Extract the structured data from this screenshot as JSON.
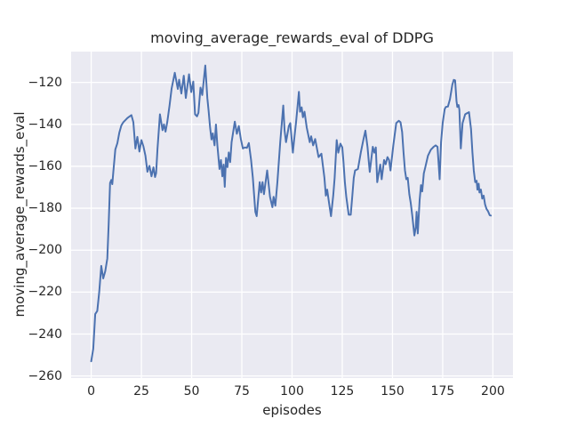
{
  "title": "moving_average_rewards_eval of DDPG",
  "colors": {
    "line": "#4c72b0",
    "axes_background": "#eaeaf2",
    "grid": "#ffffff",
    "text": "#262626",
    "figure_background": "#ffffff"
  },
  "chart_data": {
    "type": "line",
    "title": "moving_average_rewards_eval of DDPG",
    "xlabel": "episodes",
    "ylabel": "moving_average_rewards_eval",
    "x_ticks": [
      0,
      25,
      50,
      75,
      100,
      125,
      150,
      175,
      200
    ],
    "y_ticks": [
      -120,
      -140,
      -160,
      -180,
      -200,
      -220,
      -240,
      -260
    ],
    "xlim": [
      -10,
      210
    ],
    "ylim": [
      -261,
      -105.3
    ],
    "grid": true,
    "legend": "none",
    "series": [
      {
        "name": "moving_average_rewards_eval",
        "color": "#4c72b0",
        "points": [
          [
            0,
            -253
          ],
          [
            1,
            -247
          ],
          [
            2,
            -230.5
          ],
          [
            3,
            -229
          ],
          [
            4,
            -220
          ],
          [
            5,
            -207.5
          ],
          [
            6,
            -213.5
          ],
          [
            7,
            -210
          ],
          [
            8,
            -204
          ],
          [
            8.7,
            -188
          ],
          [
            9.4,
            -168
          ],
          [
            10,
            -166.5
          ],
          [
            10.5,
            -168.5
          ],
          [
            11,
            -163
          ],
          [
            12,
            -152
          ],
          [
            13,
            -149
          ],
          [
            14,
            -144
          ],
          [
            15,
            -140.5
          ],
          [
            16,
            -139
          ],
          [
            17,
            -138
          ],
          [
            18,
            -137
          ],
          [
            19,
            -136.3
          ],
          [
            20,
            -135.6
          ],
          [
            21,
            -139
          ],
          [
            22,
            -151.5
          ],
          [
            23,
            -146
          ],
          [
            24,
            -153
          ],
          [
            25,
            -147.5
          ],
          [
            26,
            -150.5
          ],
          [
            27,
            -155
          ],
          [
            28,
            -162.6
          ],
          [
            29,
            -159.8
          ],
          [
            30,
            -164.8
          ],
          [
            31,
            -160.5
          ],
          [
            31.8,
            -165.1
          ],
          [
            32.3,
            -163.3
          ],
          [
            33,
            -152
          ],
          [
            34.2,
            -135.2
          ],
          [
            35.5,
            -142.8
          ],
          [
            36.2,
            -140
          ],
          [
            37,
            -143.5
          ],
          [
            37.9,
            -138.7
          ],
          [
            39,
            -131
          ],
          [
            40,
            -123
          ],
          [
            41.6,
            -115.4
          ],
          [
            43.1,
            -123.1
          ],
          [
            43.8,
            -118.7
          ],
          [
            44.9,
            -125.3
          ],
          [
            46.1,
            -116.8
          ],
          [
            47.1,
            -127.4
          ],
          [
            48.7,
            -116.1
          ],
          [
            49.8,
            -124.6
          ],
          [
            50.8,
            -119.6
          ],
          [
            51.7,
            -135.2
          ],
          [
            52.7,
            -136.2
          ],
          [
            53.4,
            -134.5
          ],
          [
            54.4,
            -122.5
          ],
          [
            55.3,
            -126
          ],
          [
            56.8,
            -111.9
          ],
          [
            57.8,
            -127.4
          ],
          [
            58.5,
            -133.8
          ],
          [
            59.2,
            -141.5
          ],
          [
            59.9,
            -147.2
          ],
          [
            60.5,
            -144.3
          ],
          [
            61.4,
            -150
          ],
          [
            62.1,
            -140.1
          ],
          [
            62.8,
            -150
          ],
          [
            63.9,
            -161.3
          ],
          [
            64.6,
            -157
          ],
          [
            65.3,
            -164.8
          ],
          [
            65.9,
            -159.2
          ],
          [
            66.5,
            -169.8
          ],
          [
            67.1,
            -156
          ],
          [
            67.8,
            -160.4
          ],
          [
            68.5,
            -153.4
          ],
          [
            69.2,
            -158
          ],
          [
            69.9,
            -148.5
          ],
          [
            71.5,
            -138.7
          ],
          [
            72.5,
            -144.5
          ],
          [
            73.5,
            -140.8
          ],
          [
            74.5,
            -147
          ],
          [
            75.5,
            -151.5
          ],
          [
            76.5,
            -151
          ],
          [
            77.5,
            -151.2
          ],
          [
            78.5,
            -148.9
          ],
          [
            79.6,
            -157
          ],
          [
            80.5,
            -165.5
          ],
          [
            81.7,
            -181.7
          ],
          [
            82.4,
            -183.8
          ],
          [
            83.9,
            -167.6
          ],
          [
            84.6,
            -172.5
          ],
          [
            85.3,
            -167.6
          ],
          [
            86,
            -173.3
          ],
          [
            87.6,
            -162
          ],
          [
            89,
            -174.6
          ],
          [
            90.2,
            -179.5
          ],
          [
            90.8,
            -174.6
          ],
          [
            91.7,
            -178.8
          ],
          [
            92.7,
            -167.6
          ],
          [
            94.1,
            -148.5
          ],
          [
            95.6,
            -131
          ],
          [
            96.3,
            -143
          ],
          [
            97,
            -148.5
          ],
          [
            98.4,
            -140.8
          ],
          [
            99.1,
            -139.4
          ],
          [
            100.4,
            -153.5
          ],
          [
            101.2,
            -146
          ],
          [
            102,
            -139
          ],
          [
            103.4,
            -124.5
          ],
          [
            104,
            -134
          ],
          [
            104.8,
            -131.9
          ],
          [
            105.4,
            -136.6
          ],
          [
            106.2,
            -134
          ],
          [
            107.3,
            -141.5
          ],
          [
            108.8,
            -148.5
          ],
          [
            109.5,
            -145.7
          ],
          [
            110.5,
            -150
          ],
          [
            111.5,
            -147
          ],
          [
            113.2,
            -155.6
          ],
          [
            114.6,
            -154
          ],
          [
            116.1,
            -165.5
          ],
          [
            116.8,
            -174
          ],
          [
            117.5,
            -171.1
          ],
          [
            118.2,
            -176
          ],
          [
            119.4,
            -183.8
          ],
          [
            120.5,
            -174
          ],
          [
            121.2,
            -165.5
          ],
          [
            122.2,
            -147.5
          ],
          [
            123,
            -153.5
          ],
          [
            124.1,
            -149.2
          ],
          [
            125,
            -151
          ],
          [
            125.6,
            -157.7
          ],
          [
            126.3,
            -167.6
          ],
          [
            127,
            -174.6
          ],
          [
            128.2,
            -183.1
          ],
          [
            129.2,
            -183.1
          ],
          [
            130,
            -174
          ],
          [
            130.7,
            -165.5
          ],
          [
            131.4,
            -162
          ],
          [
            132.8,
            -161.3
          ],
          [
            134.2,
            -153.5
          ],
          [
            135.5,
            -147.4
          ],
          [
            136.5,
            -143
          ],
          [
            137.6,
            -150.9
          ],
          [
            138.2,
            -157.7
          ],
          [
            138.7,
            -162.7
          ],
          [
            140.2,
            -150.7
          ],
          [
            141,
            -153.5
          ],
          [
            141.7,
            -151
          ],
          [
            142.4,
            -167.6
          ],
          [
            143.9,
            -159.2
          ],
          [
            144.6,
            -166.2
          ],
          [
            145.8,
            -157
          ],
          [
            146.6,
            -159
          ],
          [
            147.5,
            -155.6
          ],
          [
            148.3,
            -157
          ],
          [
            149,
            -162
          ],
          [
            150.4,
            -150
          ],
          [
            151.9,
            -139.4
          ],
          [
            153.1,
            -138.3
          ],
          [
            154,
            -139
          ],
          [
            154.8,
            -143.6
          ],
          [
            155.5,
            -153.5
          ],
          [
            156.2,
            -162
          ],
          [
            156.9,
            -166.2
          ],
          [
            157.6,
            -165.5
          ],
          [
            158.4,
            -173.3
          ],
          [
            159.1,
            -177.5
          ],
          [
            159.8,
            -183.1
          ],
          [
            160.9,
            -193
          ],
          [
            161.6,
            -189
          ],
          [
            162,
            -181.7
          ],
          [
            162.6,
            -192
          ],
          [
            163.5,
            -176.1
          ],
          [
            164.2,
            -169
          ],
          [
            164.8,
            -172
          ],
          [
            165.6,
            -163.4
          ],
          [
            166.3,
            -160.6
          ],
          [
            167.7,
            -154.9
          ],
          [
            169.1,
            -152.1
          ],
          [
            170.5,
            -150.7
          ],
          [
            171.5,
            -150
          ],
          [
            172.4,
            -150.7
          ],
          [
            173.5,
            -166.2
          ],
          [
            174.2,
            -148.5
          ],
          [
            175,
            -139.4
          ],
          [
            176,
            -132.7
          ],
          [
            176.6,
            -131.7
          ],
          [
            177.6,
            -131.5
          ],
          [
            178.6,
            -128
          ],
          [
            179.8,
            -121
          ],
          [
            180.5,
            -118.8
          ],
          [
            181.2,
            -119
          ],
          [
            181.9,
            -129
          ],
          [
            182.3,
            -131.7
          ],
          [
            182.9,
            -130.8
          ],
          [
            183.3,
            -133
          ],
          [
            184,
            -151.5
          ],
          [
            184.9,
            -139.4
          ],
          [
            186.2,
            -135.2
          ],
          [
            187.2,
            -134.6
          ],
          [
            188.1,
            -134.2
          ],
          [
            189.1,
            -142.2
          ],
          [
            189.8,
            -153.5
          ],
          [
            190.5,
            -162
          ],
          [
            191.2,
            -167.6
          ],
          [
            191.9,
            -166.9
          ],
          [
            192.3,
            -171.2
          ],
          [
            192.9,
            -168.3
          ],
          [
            193.3,
            -172.5
          ],
          [
            194,
            -171.1
          ],
          [
            194.7,
            -175.4
          ],
          [
            195.4,
            -174
          ],
          [
            196.1,
            -178.2
          ],
          [
            196.8,
            -180.3
          ],
          [
            197.6,
            -181.5
          ],
          [
            198.4,
            -183.3
          ],
          [
            199,
            -183.5
          ]
        ]
      }
    ]
  }
}
